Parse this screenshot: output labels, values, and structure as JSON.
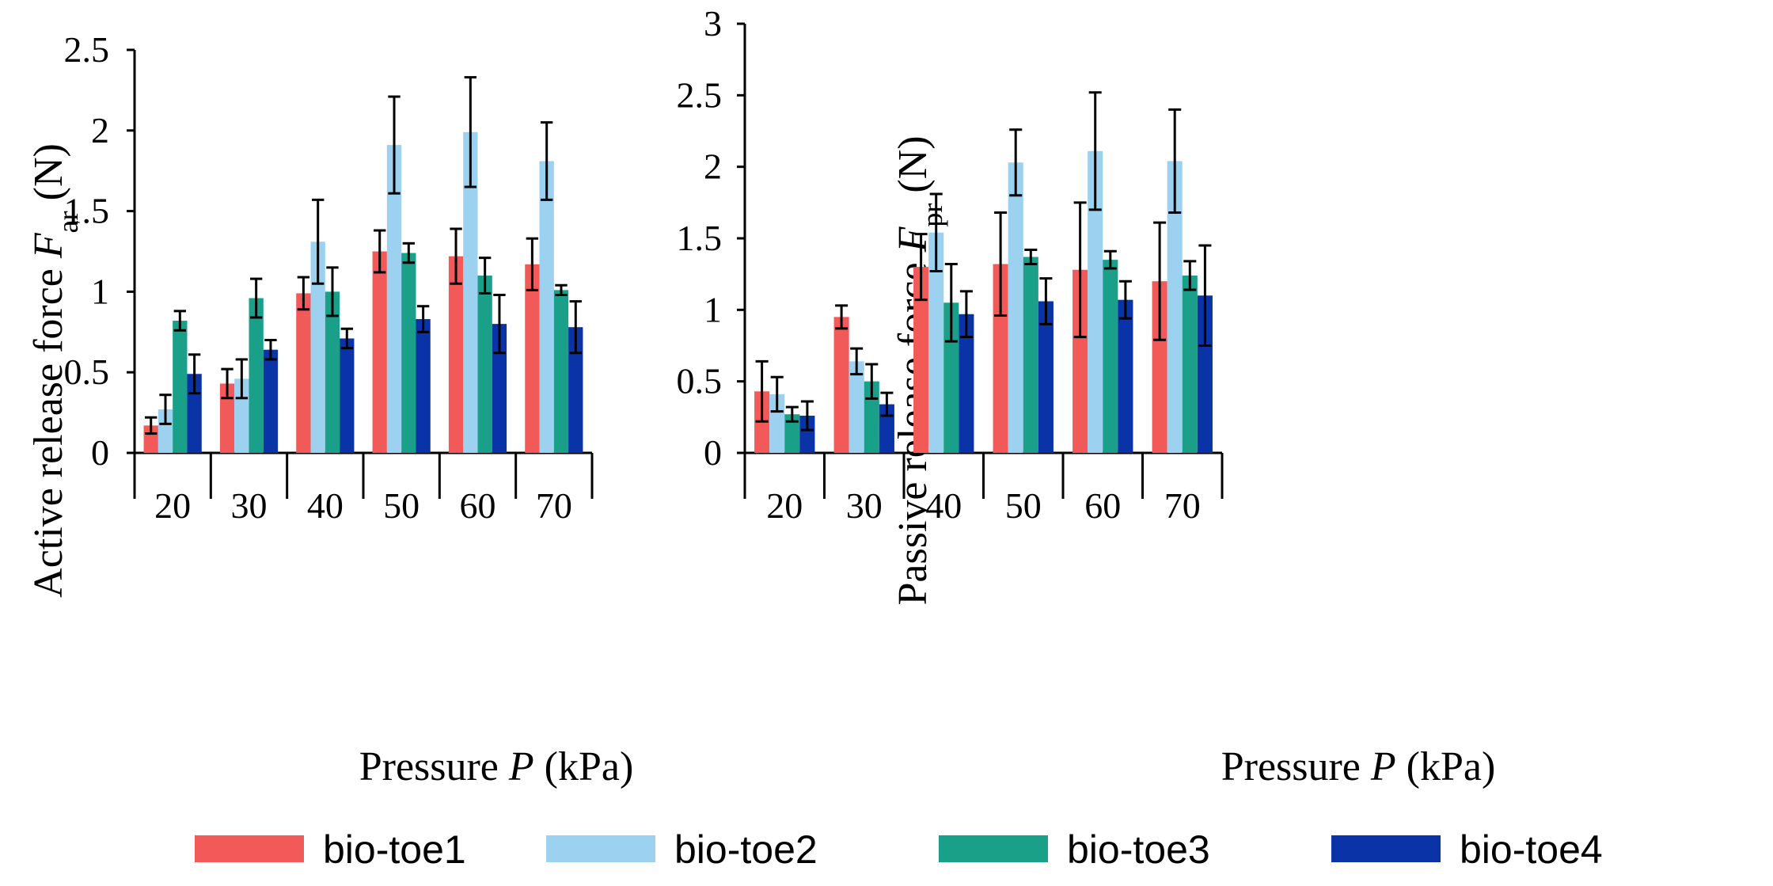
{
  "chart_data": [
    {
      "type": "bar",
      "title": "",
      "ylabel_prefix": "Active release force ",
      "ylabel_var": "F",
      "ylabel_sub": "ar",
      "ylabel_unit": " (N)",
      "xlabel_prefix": "Pressure ",
      "xlabel_var": "P",
      "xlabel_unit": " (kPa)",
      "ylim": [
        0,
        2.5
      ],
      "yticks": [
        "0",
        "0.5",
        "1",
        "1.5",
        "2",
        "2.5"
      ],
      "categories": [
        "20",
        "30",
        "40",
        "50",
        "60",
        "70"
      ],
      "series": [
        {
          "name": "bio-toe1",
          "values": [
            0.17,
            0.43,
            0.99,
            1.25,
            1.22,
            1.17
          ],
          "errors": [
            0.05,
            0.09,
            0.1,
            0.13,
            0.17,
            0.16
          ]
        },
        {
          "name": "bio-toe2",
          "values": [
            0.27,
            0.46,
            1.31,
            1.91,
            1.99,
            1.81
          ],
          "errors": [
            0.09,
            0.12,
            0.26,
            0.3,
            0.34,
            0.24
          ]
        },
        {
          "name": "bio-toe3",
          "values": [
            0.82,
            0.96,
            1.0,
            1.24,
            1.1,
            1.01
          ],
          "errors": [
            0.06,
            0.12,
            0.15,
            0.06,
            0.11,
            0.03
          ]
        },
        {
          "name": "bio-toe4",
          "values": [
            0.49,
            0.64,
            0.71,
            0.83,
            0.8,
            0.78
          ],
          "errors": [
            0.12,
            0.06,
            0.06,
            0.08,
            0.18,
            0.16
          ]
        }
      ]
    },
    {
      "type": "bar",
      "title": "",
      "ylabel_prefix": "Passive release force ",
      "ylabel_var": "F",
      "ylabel_sub": "pr",
      "ylabel_unit": " (N)",
      "xlabel_prefix": "Pressure ",
      "xlabel_var": "P",
      "xlabel_unit": " (kPa)",
      "ylim": [
        0,
        3
      ],
      "yticks": [
        "0",
        "0.5",
        "1",
        "1.5",
        "2",
        "2.5",
        "3"
      ],
      "categories": [
        "20",
        "30",
        "40",
        "50",
        "60",
        "70"
      ],
      "series": [
        {
          "name": "bio-toe1",
          "values": [
            0.43,
            0.95,
            1.3,
            1.32,
            1.28,
            1.2
          ],
          "errors": [
            0.21,
            0.08,
            0.23,
            0.36,
            0.47,
            0.41
          ]
        },
        {
          "name": "bio-toe2",
          "values": [
            0.41,
            0.64,
            1.54,
            2.03,
            2.11,
            2.04
          ],
          "errors": [
            0.12,
            0.09,
            0.27,
            0.23,
            0.41,
            0.36
          ]
        },
        {
          "name": "bio-toe3",
          "values": [
            0.27,
            0.5,
            1.05,
            1.37,
            1.35,
            1.24
          ],
          "errors": [
            0.05,
            0.12,
            0.27,
            0.05,
            0.06,
            0.1
          ]
        },
        {
          "name": "bio-toe4",
          "values": [
            0.26,
            0.34,
            0.97,
            1.06,
            1.07,
            1.1
          ],
          "errors": [
            0.1,
            0.08,
            0.16,
            0.16,
            0.13,
            0.35
          ]
        }
      ]
    }
  ],
  "legend": {
    "position": "bottom",
    "items": [
      {
        "label": "bio-toe1",
        "color": "#f25a5a"
      },
      {
        "label": "bio-toe2",
        "color": "#9dd1f0"
      },
      {
        "label": "bio-toe3",
        "color": "#1aa089"
      },
      {
        "label": "bio-toe4",
        "color": "#0a33a8"
      }
    ]
  }
}
